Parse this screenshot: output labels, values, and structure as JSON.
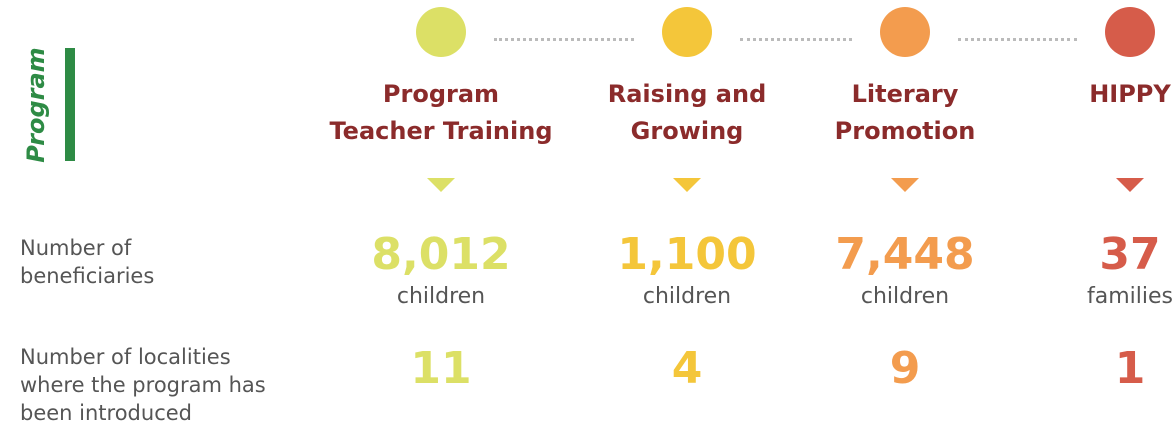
{
  "side_label": "Program",
  "row_labels": [
    "Number of beneficiaries",
    "Number of localities where the program has been introduced"
  ],
  "programs": [
    {
      "name_lines": [
        "Program",
        "Teacher Training"
      ],
      "beneficiaries": "8,012",
      "unit": "children",
      "localities": "11"
    },
    {
      "name_lines": [
        "Raising and",
        "Growing"
      ],
      "beneficiaries": "1,100",
      "unit": "children",
      "localities": "4"
    },
    {
      "name_lines": [
        "Literary",
        "Promotion"
      ],
      "beneficiaries": "7,448",
      "unit": "children",
      "localities": "9"
    },
    {
      "name_lines": [
        "HIPPY"
      ],
      "beneficiaries": "37",
      "unit": "families",
      "localities": "1"
    }
  ]
}
